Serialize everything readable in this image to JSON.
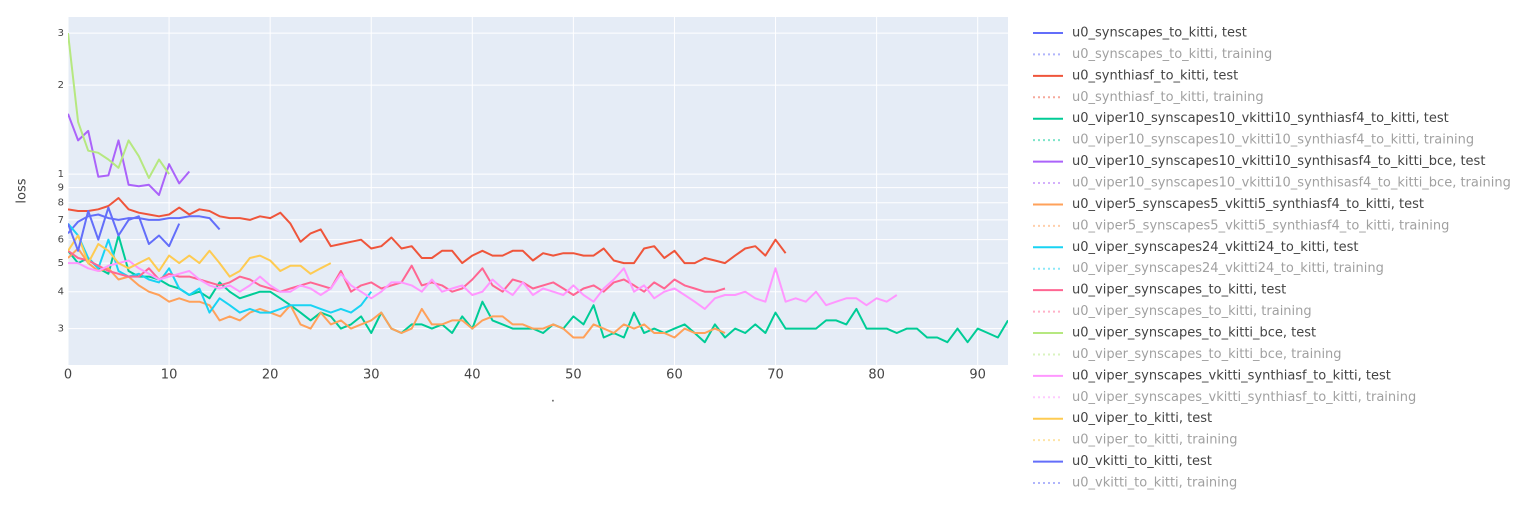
{
  "chart_data": {
    "type": "line",
    "x_label": ".",
    "y_label": "loss",
    "log_y": true,
    "grid": true,
    "xlim": [
      0,
      93
    ],
    "xticks": [
      0,
      10,
      20,
      30,
      40,
      50,
      60,
      70,
      80,
      90
    ],
    "ylim": [
      0.226,
      3.4
    ],
    "yticks": [
      3,
      2,
      1,
      {
        "value": 0.9,
        "label": "9"
      },
      {
        "value": 0.8,
        "label": "8"
      },
      {
        "value": 0.7,
        "label": "7"
      },
      {
        "value": 0.6,
        "label": "6"
      },
      {
        "value": 0.5,
        "label": "5"
      },
      {
        "value": 0.4,
        "label": "4"
      },
      {
        "value": 0.3,
        "label": "3"
      }
    ],
    "series": [
      {
        "name": "u0_synscapes_to_kitti, test",
        "color": "#636efa",
        "dash": "solid",
        "x": [
          0,
          1,
          2,
          3,
          4,
          5,
          6,
          7,
          8,
          9,
          10,
          11,
          12,
          13,
          14,
          15
        ],
        "values": [
          0.63,
          0.69,
          0.72,
          0.73,
          0.71,
          0.7,
          0.71,
          0.71,
          0.7,
          0.7,
          0.71,
          0.71,
          0.72,
          0.72,
          0.71,
          0.65
        ]
      },
      {
        "name": "u0_synscapes_to_kitti, training",
        "color": "#636efa",
        "dash": "dot",
        "visible": "legendonly"
      },
      {
        "name": "u0_synthiasf_to_kitti, test",
        "color": "#EF553B",
        "dash": "solid",
        "x": [
          0,
          1,
          2,
          3,
          4,
          5,
          6,
          7,
          8,
          9,
          10,
          11,
          12,
          13,
          14,
          15,
          16,
          17,
          18,
          19,
          20,
          21,
          22,
          23,
          24,
          25,
          26,
          27,
          28,
          29,
          30,
          31,
          32,
          33,
          34,
          35,
          36,
          37,
          38,
          39,
          40,
          41,
          42,
          43,
          44,
          45,
          46,
          47,
          48,
          49,
          50,
          51,
          52,
          53,
          54,
          55,
          56,
          57,
          58,
          59,
          60,
          61,
          62,
          63,
          64,
          65,
          66,
          67,
          68,
          69,
          70,
          71
        ],
        "values": [
          0.76,
          0.75,
          0.75,
          0.76,
          0.78,
          0.83,
          0.76,
          0.74,
          0.73,
          0.72,
          0.73,
          0.77,
          0.73,
          0.76,
          0.75,
          0.72,
          0.71,
          0.71,
          0.7,
          0.72,
          0.71,
          0.74,
          0.68,
          0.59,
          0.63,
          0.65,
          0.57,
          0.58,
          0.59,
          0.6,
          0.56,
          0.57,
          0.61,
          0.56,
          0.57,
          0.52,
          0.52,
          0.55,
          0.55,
          0.5,
          0.53,
          0.55,
          0.53,
          0.53,
          0.55,
          0.55,
          0.51,
          0.54,
          0.53,
          0.54,
          0.54,
          0.53,
          0.53,
          0.56,
          0.51,
          0.5,
          0.5,
          0.56,
          0.57,
          0.52,
          0.55,
          0.5,
          0.5,
          0.52,
          0.51,
          0.5,
          0.53,
          0.56,
          0.57,
          0.53,
          0.6,
          0.54
        ]
      },
      {
        "name": "u0_synthiasf_to_kitti, training",
        "color": "#EF553B",
        "dash": "dot",
        "visible": "legendonly"
      },
      {
        "name": "u0_viper10_synscapes10_vkitti10_synthiasf4_to_kitti, test",
        "color": "#00cc96",
        "dash": "solid",
        "x": [
          0,
          1,
          2,
          3,
          4,
          5,
          6,
          7,
          8,
          9,
          10,
          11,
          12,
          13,
          14,
          15,
          16,
          17,
          18,
          19,
          20,
          21,
          22,
          23,
          24,
          25,
          26,
          27,
          28,
          29,
          30,
          31,
          32,
          33,
          34,
          35,
          36,
          37,
          38,
          39,
          40,
          41,
          42,
          43,
          44,
          45,
          46,
          47,
          48,
          49,
          50,
          51,
          52,
          53,
          54,
          55,
          56,
          57,
          58,
          59,
          60,
          61,
          62,
          63,
          64,
          65,
          66,
          67,
          68,
          69,
          70,
          71,
          72,
          73,
          74,
          75,
          76,
          77,
          78,
          79,
          80,
          81,
          82,
          83,
          84,
          85,
          86,
          87,
          88,
          89,
          90,
          91,
          92,
          93
        ],
        "values": [
          0.55,
          0.5,
          0.52,
          0.48,
          0.46,
          0.62,
          0.47,
          0.45,
          0.45,
          0.44,
          0.42,
          0.41,
          0.39,
          0.4,
          0.38,
          0.43,
          0.4,
          0.38,
          0.39,
          0.4,
          0.4,
          0.38,
          0.36,
          0.34,
          0.32,
          0.34,
          0.33,
          0.3,
          0.31,
          0.33,
          0.29,
          0.34,
          0.3,
          0.29,
          0.31,
          0.31,
          0.3,
          0.31,
          0.29,
          0.33,
          0.3,
          0.37,
          0.32,
          0.31,
          0.3,
          0.3,
          0.3,
          0.29,
          0.31,
          0.3,
          0.33,
          0.31,
          0.36,
          0.28,
          0.29,
          0.28,
          0.34,
          0.29,
          0.3,
          0.29,
          0.3,
          0.31,
          0.29,
          0.27,
          0.31,
          0.28,
          0.3,
          0.29,
          0.31,
          0.29,
          0.34,
          0.3,
          0.3,
          0.3,
          0.3,
          0.32,
          0.32,
          0.31,
          0.35,
          0.3,
          0.3,
          0.3,
          0.29,
          0.3,
          0.3,
          0.28,
          0.28,
          0.27,
          0.3,
          0.27,
          0.3,
          0.29,
          0.28,
          0.32
        ]
      },
      {
        "name": "u0_viper10_synscapes10_vkitti10_synthiasf4_to_kitti, training",
        "color": "#00cc96",
        "dash": "dot",
        "visible": "legendonly"
      },
      {
        "name": "u0_viper10_synscapes10_vkitti10_synthisasf4_to_kitti_bce, test",
        "color": "#ab63fa",
        "dash": "solid",
        "x": [
          0,
          1,
          2,
          3,
          4,
          5,
          6,
          7,
          8,
          9,
          10,
          11,
          12
        ],
        "values": [
          1.6,
          1.3,
          1.4,
          0.98,
          0.99,
          1.3,
          0.92,
          0.91,
          0.92,
          0.85,
          1.08,
          0.93,
          1.02
        ]
      },
      {
        "name": "u0_viper10_synscapes10_vkitti10_synthisasf4_to_kitti_bce, training",
        "color": "#ab63fa",
        "dash": "dot",
        "visible": "legendonly"
      },
      {
        "name": "u0_viper5_synscapes5_vkitti5_synthiasf4_to_kitti, test",
        "color": "#FFA15A",
        "dash": "solid",
        "x": [
          0,
          1,
          2,
          3,
          4,
          5,
          6,
          7,
          8,
          9,
          10,
          11,
          12,
          13,
          14,
          15,
          16,
          17,
          18,
          19,
          20,
          21,
          22,
          23,
          24,
          25,
          26,
          27,
          28,
          29,
          30,
          31,
          32,
          33,
          34,
          35,
          36,
          37,
          38,
          39,
          40,
          41,
          42,
          43,
          44,
          45,
          46,
          47,
          48,
          49,
          50,
          51,
          52,
          53,
          54,
          55,
          56,
          57,
          58,
          59,
          60,
          61,
          62,
          63,
          64,
          65
        ],
        "values": [
          0.52,
          0.56,
          0.5,
          0.47,
          0.48,
          0.44,
          0.45,
          0.42,
          0.4,
          0.39,
          0.37,
          0.38,
          0.37,
          0.37,
          0.36,
          0.32,
          0.33,
          0.32,
          0.34,
          0.35,
          0.34,
          0.33,
          0.36,
          0.31,
          0.3,
          0.34,
          0.31,
          0.32,
          0.3,
          0.31,
          0.32,
          0.34,
          0.3,
          0.29,
          0.3,
          0.35,
          0.31,
          0.31,
          0.32,
          0.32,
          0.3,
          0.32,
          0.33,
          0.33,
          0.31,
          0.31,
          0.3,
          0.3,
          0.31,
          0.3,
          0.28,
          0.28,
          0.31,
          0.3,
          0.29,
          0.31,
          0.3,
          0.31,
          0.29,
          0.29,
          0.28,
          0.3,
          0.29,
          0.29,
          0.3,
          0.29
        ]
      },
      {
        "name": "u0_viper5_synscapes5_vkitti5_synthiasf4_to_kitti, training",
        "color": "#FFA15A",
        "dash": "dot",
        "visible": "legendonly"
      },
      {
        "name": "u0_viper_synscapes24_vkitti24_to_kitti, test",
        "color": "#19d3f3",
        "dash": "solid",
        "x": [
          0,
          1,
          2,
          3,
          4,
          5,
          6,
          7,
          8,
          9,
          10,
          11,
          12,
          13,
          14,
          15,
          16,
          17,
          18,
          19,
          20,
          21,
          22,
          23,
          24,
          25,
          26,
          27,
          28,
          29,
          30
        ],
        "values": [
          0.68,
          0.62,
          0.52,
          0.48,
          0.6,
          0.47,
          0.45,
          0.46,
          0.44,
          0.43,
          0.48,
          0.41,
          0.39,
          0.41,
          0.34,
          0.38,
          0.36,
          0.34,
          0.35,
          0.34,
          0.34,
          0.35,
          0.36,
          0.36,
          0.36,
          0.35,
          0.34,
          0.35,
          0.34,
          0.36,
          0.4
        ]
      },
      {
        "name": "u0_viper_synscapes24_vkitti24_to_kitti, training",
        "color": "#19d3f3",
        "dash": "dot",
        "visible": "legendonly"
      },
      {
        "name": "u0_viper_synscapes_to_kitti, test",
        "color": "#FF6692",
        "dash": "solid",
        "x": [
          0,
          1,
          2,
          3,
          4,
          5,
          6,
          7,
          8,
          9,
          10,
          11,
          12,
          13,
          14,
          15,
          16,
          17,
          18,
          19,
          20,
          21,
          22,
          23,
          24,
          25,
          26,
          27,
          28,
          29,
          30,
          31,
          32,
          33,
          34,
          35,
          36,
          37,
          38,
          39,
          40,
          41,
          42,
          43,
          44,
          45,
          46,
          47,
          48,
          49,
          50,
          51,
          52,
          53,
          54,
          55,
          56,
          57,
          58,
          59,
          60,
          61,
          62,
          63,
          64,
          65
        ],
        "values": [
          0.55,
          0.52,
          0.51,
          0.49,
          0.47,
          0.46,
          0.45,
          0.45,
          0.48,
          0.44,
          0.46,
          0.45,
          0.45,
          0.44,
          0.43,
          0.42,
          0.43,
          0.45,
          0.44,
          0.42,
          0.41,
          0.4,
          0.41,
          0.42,
          0.43,
          0.42,
          0.41,
          0.47,
          0.4,
          0.42,
          0.43,
          0.41,
          0.42,
          0.43,
          0.49,
          0.42,
          0.43,
          0.42,
          0.4,
          0.41,
          0.44,
          0.48,
          0.42,
          0.4,
          0.44,
          0.43,
          0.41,
          0.42,
          0.43,
          0.41,
          0.39,
          0.41,
          0.42,
          0.4,
          0.43,
          0.44,
          0.42,
          0.4,
          0.43,
          0.41,
          0.44,
          0.42,
          0.41,
          0.4,
          0.4,
          0.41
        ]
      },
      {
        "name": "u0_viper_synscapes_to_kitti, training",
        "color": "#FF6692",
        "dash": "dot",
        "visible": "legendonly"
      },
      {
        "name": "u0_viper_synscapes_to_kitti_bce, test",
        "color": "#B6E880",
        "dash": "solid",
        "x": [
          0,
          1,
          2,
          3,
          4,
          5,
          6,
          7,
          8,
          9,
          10
        ],
        "values": [
          3.0,
          1.5,
          1.2,
          1.18,
          1.12,
          1.05,
          1.3,
          1.15,
          0.97,
          1.12,
          1.0
        ]
      },
      {
        "name": "u0_viper_synscapes_to_kitti_bce, training",
        "color": "#B6E880",
        "dash": "dot",
        "visible": "legendonly"
      },
      {
        "name": "u0_viper_synscapes_vkitti_synthiasf_to_kitti, test",
        "color": "#FF97FF",
        "dash": "solid",
        "x": [
          0,
          1,
          2,
          3,
          4,
          5,
          6,
          7,
          8,
          9,
          10,
          11,
          12,
          13,
          14,
          15,
          16,
          17,
          18,
          19,
          20,
          21,
          22,
          23,
          24,
          25,
          26,
          27,
          28,
          29,
          30,
          31,
          32,
          33,
          34,
          35,
          36,
          37,
          38,
          39,
          40,
          41,
          42,
          43,
          44,
          45,
          46,
          47,
          48,
          49,
          50,
          51,
          52,
          53,
          54,
          55,
          56,
          57,
          58,
          59,
          60,
          61,
          62,
          63,
          64,
          65,
          66,
          67,
          68,
          69,
          70,
          71,
          72,
          73,
          74,
          75,
          76,
          77,
          78,
          79,
          80,
          81,
          82
        ],
        "values": [
          0.5,
          0.5,
          0.48,
          0.47,
          0.49,
          0.5,
          0.51,
          0.48,
          0.46,
          0.44,
          0.45,
          0.46,
          0.47,
          0.44,
          0.42,
          0.41,
          0.42,
          0.4,
          0.42,
          0.45,
          0.42,
          0.4,
          0.4,
          0.42,
          0.41,
          0.39,
          0.41,
          0.46,
          0.42,
          0.4,
          0.38,
          0.4,
          0.43,
          0.43,
          0.42,
          0.4,
          0.44,
          0.4,
          0.41,
          0.42,
          0.39,
          0.4,
          0.44,
          0.41,
          0.39,
          0.43,
          0.39,
          0.41,
          0.4,
          0.39,
          0.42,
          0.39,
          0.37,
          0.41,
          0.44,
          0.48,
          0.4,
          0.42,
          0.38,
          0.4,
          0.41,
          0.39,
          0.37,
          0.35,
          0.38,
          0.39,
          0.39,
          0.4,
          0.38,
          0.37,
          0.48,
          0.37,
          0.38,
          0.37,
          0.4,
          0.36,
          0.37,
          0.38,
          0.38,
          0.36,
          0.38,
          0.37,
          0.39
        ]
      },
      {
        "name": "u0_viper_synscapes_vkitti_synthiasf_to_kitti, training",
        "color": "#FF97FF",
        "dash": "dot",
        "visible": "legendonly"
      },
      {
        "name": "u0_viper_to_kitti, test",
        "color": "#FECB52",
        "dash": "solid",
        "x": [
          0,
          1,
          2,
          3,
          4,
          5,
          6,
          7,
          8,
          9,
          10,
          11,
          12,
          13,
          14,
          15,
          16,
          17,
          18,
          19,
          20,
          21,
          22,
          23,
          24,
          25,
          26
        ],
        "values": [
          0.55,
          0.62,
          0.5,
          0.58,
          0.55,
          0.5,
          0.48,
          0.5,
          0.52,
          0.47,
          0.53,
          0.5,
          0.53,
          0.5,
          0.55,
          0.5,
          0.45,
          0.47,
          0.52,
          0.53,
          0.51,
          0.47,
          0.49,
          0.49,
          0.46,
          0.48,
          0.5
        ]
      },
      {
        "name": "u0_viper_to_kitti, training",
        "color": "#FECB52",
        "dash": "dot",
        "visible": "legendonly"
      },
      {
        "name": "u0_vkitti_to_kitti, test",
        "color": "#636efa",
        "dash": "solid",
        "x": [
          0,
          1,
          2,
          3,
          4,
          5,
          6,
          7,
          8,
          9,
          10,
          11
        ],
        "values": [
          0.68,
          0.55,
          0.75,
          0.6,
          0.77,
          0.62,
          0.7,
          0.72,
          0.58,
          0.62,
          0.57,
          0.68
        ]
      },
      {
        "name": "u0_vkitti_to_kitti, training",
        "color": "#636efa",
        "dash": "dot",
        "visible": "legendonly"
      }
    ]
  }
}
